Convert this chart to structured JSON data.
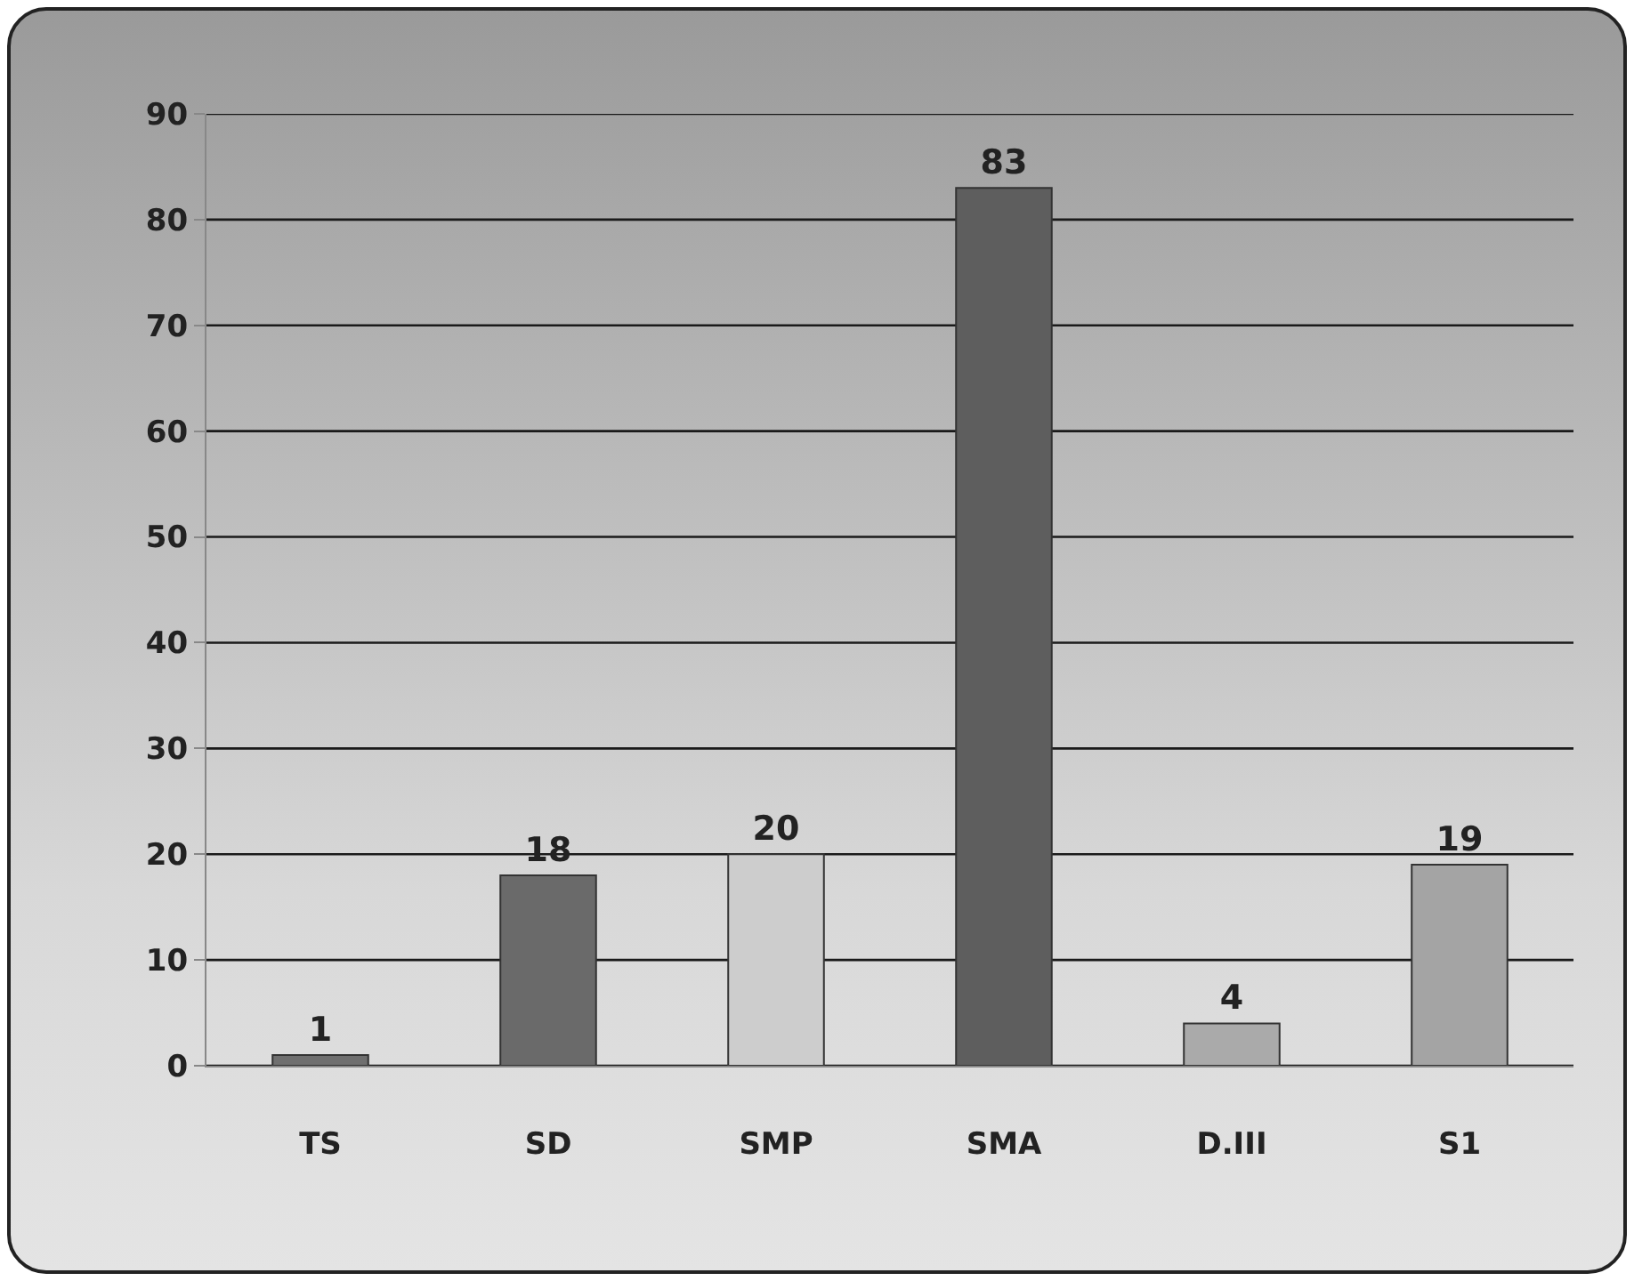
{
  "chart_data": {
    "type": "bar",
    "categories": [
      "TS",
      "SD",
      "SMP",
      "SMA",
      "D.III",
      "S1"
    ],
    "values": [
      1,
      18,
      20,
      83,
      4,
      19
    ],
    "colors": [
      "#6f6f6f",
      "#6a6a6a",
      "#cdcdcd",
      "#5e5e5e",
      "#aaaaaa",
      "#a4a4a4"
    ],
    "ylim": [
      0,
      90
    ],
    "yticks": [
      0,
      10,
      20,
      30,
      40,
      50,
      60,
      70,
      80,
      90
    ],
    "grid": "y",
    "data_labels": true
  }
}
